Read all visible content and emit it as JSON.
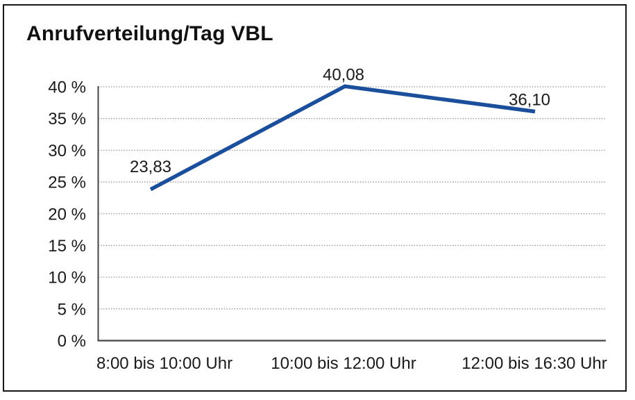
{
  "colors": {
    "line": "#1b4f9c",
    "grid": "#8c8c8c",
    "axis": "#454545",
    "text": "#1a1a1a",
    "border": "#161616",
    "background": "#ffffff"
  },
  "chart_data": {
    "type": "line",
    "title": "Anrufverteilung/Tag VBL",
    "categories": [
      "8:00 bis 10:00 Uhr",
      "10:00 bis 12:00 Uhr",
      "12:00 bis 16:30 Uhr"
    ],
    "values": [
      23.83,
      40.08,
      36.1
    ],
    "value_labels": [
      "23,83",
      "40,08",
      "36,10"
    ],
    "xlabel": "",
    "ylabel": "",
    "ylim": [
      0,
      40
    ],
    "ytick_step": 5,
    "ytick_labels": [
      "0 %",
      "5 %",
      "10 %",
      "15 %",
      "20 %",
      "25 %",
      "30 %",
      "35 %",
      "40 %"
    ],
    "grid": "horizontal-dotted",
    "legend": "none",
    "markers": "none"
  }
}
